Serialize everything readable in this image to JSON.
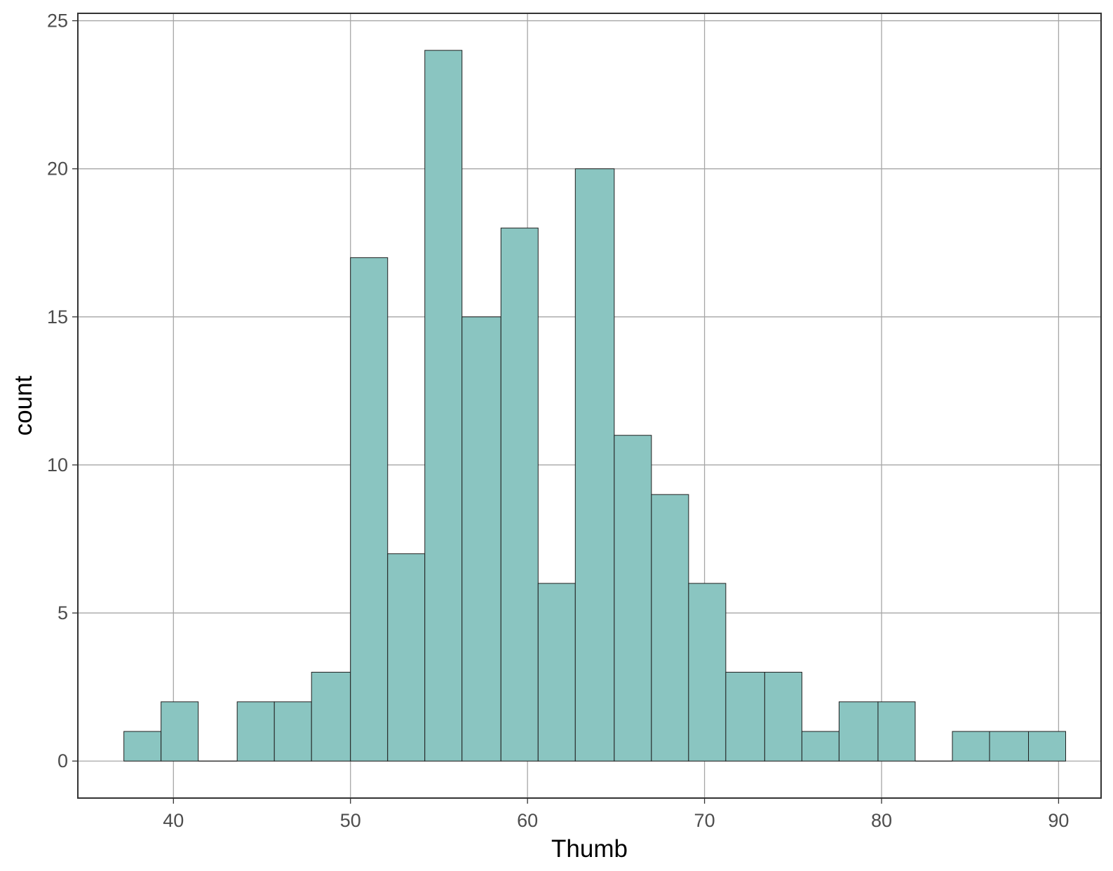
{
  "chart_data": {
    "type": "bar",
    "subtype": "histogram",
    "title": "",
    "xlabel": "Thumb",
    "ylabel": "count",
    "xlim": [
      34.6,
      92.4
    ],
    "ylim": [
      -1.25,
      25.25
    ],
    "x_ticks": [
      40,
      50,
      60,
      70,
      80,
      90
    ],
    "y_ticks": [
      0,
      5,
      10,
      15,
      20,
      25
    ],
    "grid": true,
    "bins": [
      {
        "x0": 37.2,
        "x1": 39.3,
        "count": 1
      },
      {
        "x0": 39.3,
        "x1": 41.4,
        "count": 2
      },
      {
        "x0": 41.4,
        "x1": 43.6,
        "count": 0
      },
      {
        "x0": 43.6,
        "x1": 45.7,
        "count": 2
      },
      {
        "x0": 45.7,
        "x1": 47.8,
        "count": 2
      },
      {
        "x0": 47.8,
        "x1": 50.0,
        "count": 3
      },
      {
        "x0": 50.0,
        "x1": 52.1,
        "count": 17
      },
      {
        "x0": 52.1,
        "x1": 54.2,
        "count": 7
      },
      {
        "x0": 54.2,
        "x1": 56.3,
        "count": 24
      },
      {
        "x0": 56.3,
        "x1": 58.5,
        "count": 15
      },
      {
        "x0": 58.5,
        "x1": 60.6,
        "count": 18
      },
      {
        "x0": 60.6,
        "x1": 62.7,
        "count": 6
      },
      {
        "x0": 62.7,
        "x1": 64.9,
        "count": 20
      },
      {
        "x0": 64.9,
        "x1": 67.0,
        "count": 11
      },
      {
        "x0": 67.0,
        "x1": 69.1,
        "count": 9
      },
      {
        "x0": 69.1,
        "x1": 71.2,
        "count": 6
      },
      {
        "x0": 71.2,
        "x1": 73.4,
        "count": 3
      },
      {
        "x0": 73.4,
        "x1": 75.5,
        "count": 3
      },
      {
        "x0": 75.5,
        "x1": 77.6,
        "count": 1
      },
      {
        "x0": 77.6,
        "x1": 79.8,
        "count": 2
      },
      {
        "x0": 79.8,
        "x1": 81.9,
        "count": 2
      },
      {
        "x0": 81.9,
        "x1": 84.0,
        "count": 0
      },
      {
        "x0": 84.0,
        "x1": 86.1,
        "count": 1
      },
      {
        "x0": 86.1,
        "x1": 88.3,
        "count": 1
      },
      {
        "x0": 88.3,
        "x1": 90.4,
        "count": 1
      }
    ],
    "colors": {
      "bar_fill": "#8ac5c1",
      "bar_stroke": "#1f1f1f",
      "grid": "#a6a6a6",
      "frame": "#333333"
    }
  }
}
